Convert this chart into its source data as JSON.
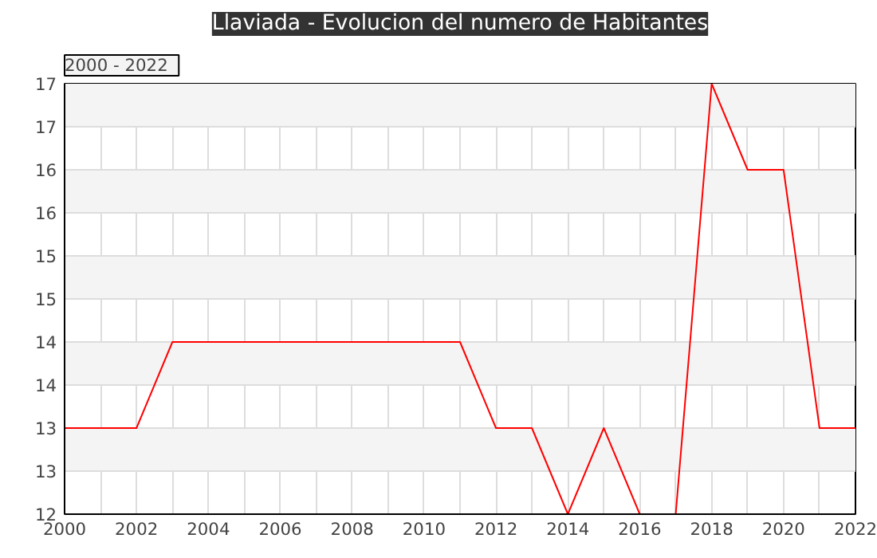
{
  "chart_data": {
    "type": "line",
    "title": "Llaviada - Evolucion del numero de Habitantes",
    "annotations": [
      "2000 - 2022"
    ],
    "x": [
      2000,
      2001,
      2002,
      2003,
      2004,
      2005,
      2006,
      2007,
      2008,
      2009,
      2010,
      2011,
      2012,
      2013,
      2014,
      2015,
      2016,
      2017,
      2018,
      2019,
      2020,
      2021,
      2022
    ],
    "series": [
      {
        "color": "#ff0000",
        "values": [
          13,
          13,
          13,
          14,
          14,
          14,
          14,
          14,
          14,
          14,
          14,
          14,
          13,
          13,
          12,
          13,
          12,
          12,
          17,
          16,
          16,
          13,
          13
        ]
      }
    ],
    "xlim": [
      2000,
      2022
    ],
    "xticks": [
      2000,
      {
        "value": 2001,
        "label": null
      },
      2002,
      {
        "value": 2003,
        "label": null
      },
      2004,
      {
        "value": 2005,
        "label": null
      },
      2006,
      {
        "value": 2007,
        "label": null
      },
      2008,
      {
        "value": 2009,
        "label": null
      },
      2010,
      {
        "value": 2011,
        "label": null
      },
      2012,
      {
        "value": 2013,
        "label": null
      },
      2014,
      {
        "value": 2015,
        "label": null
      },
      2016,
      {
        "value": 2017,
        "label": null
      },
      2018,
      {
        "value": 2019,
        "label": null
      },
      2020,
      {
        "value": 2021,
        "label": null
      },
      2022
    ],
    "ylim": [
      12,
      17
    ],
    "yticks": [
      12,
      {
        "value": 12.5,
        "label": "13"
      },
      13,
      {
        "value": 13.5,
        "label": "14"
      },
      14,
      {
        "value": 14.5,
        "label": "15"
      },
      15,
      {
        "value": 15.5,
        "label": "16"
      },
      16,
      {
        "value": 16.5,
        "label": "17"
      },
      17
    ],
    "grid": true,
    "marker": "none",
    "line_style": "solid"
  }
}
